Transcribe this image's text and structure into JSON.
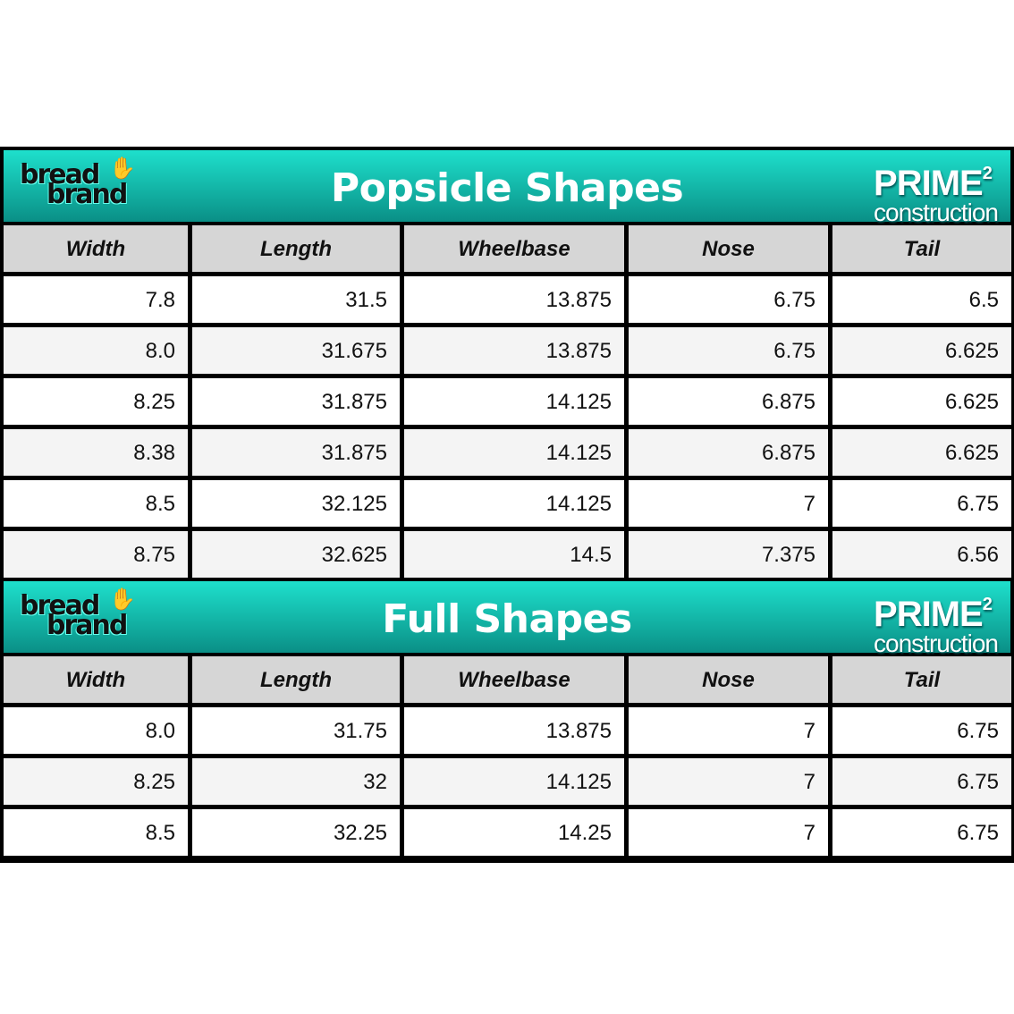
{
  "brand": {
    "logo_text": "bread brand",
    "prime": "PRIME",
    "prime_sup": "2",
    "construction": "construction"
  },
  "columns": [
    "Width",
    "Length",
    "Wheelbase",
    "Nose",
    "Tail"
  ],
  "sections": [
    {
      "title": "Popsicle Shapes",
      "rows": [
        [
          "7.8",
          "31.5",
          "13.875",
          "6.75",
          "6.5"
        ],
        [
          "8.0",
          "31.675",
          "13.875",
          "6.75",
          "6.625"
        ],
        [
          "8.25",
          "31.875",
          "14.125",
          "6.875",
          "6.625"
        ],
        [
          "8.38",
          "31.875",
          "14.125",
          "6.875",
          "6.625"
        ],
        [
          "8.5",
          "32.125",
          "14.125",
          "7",
          "6.75"
        ],
        [
          "8.75",
          "32.625",
          "14.5",
          "7.375",
          "6.56"
        ]
      ]
    },
    {
      "title": "Full Shapes",
      "rows": [
        [
          "8.0",
          "31.75",
          "13.875",
          "7",
          "6.75"
        ],
        [
          "8.25",
          "32",
          "14.125",
          "7",
          "6.75"
        ],
        [
          "8.5",
          "32.25",
          "14.25",
          "7",
          "6.75"
        ]
      ]
    }
  ],
  "colors": {
    "banner_top": "#1ee0cc",
    "banner_bottom": "#0a8f86",
    "header_bg": "#d6d6d6"
  }
}
